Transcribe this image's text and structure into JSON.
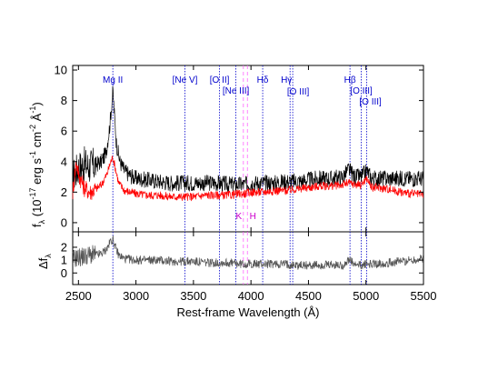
{
  "chart_data": [
    {
      "type": "line",
      "panel": "spectrum",
      "xlabel": "Rest-frame Wavelength  (Å)",
      "ylabel_main": "f",
      "ylabel_sub": "λ",
      "ylabel_units": " (10",
      "ylabel_exp": "-17",
      "ylabel_units2": " erg s",
      "ylabel_exp2": "-1",
      "ylabel_units3": " cm",
      "ylabel_exp3": "-2",
      "ylabel_units4": " Å",
      "ylabel_exp4": "-1",
      "ylabel_units5": ")",
      "xlim": [
        2450,
        5500
      ],
      "ylim": [
        -0.6,
        10.3
      ],
      "yticks": [
        0,
        2,
        4,
        6,
        8,
        10
      ],
      "series": [
        {
          "color": "#000000",
          "x": [
            2450,
            2500,
            2550,
            2600,
            2650,
            2700,
            2740,
            2770,
            2790,
            2800,
            2810,
            2830,
            2860,
            2900,
            2950,
            3000,
            3100,
            3200,
            3300,
            3400,
            3500,
            3600,
            3700,
            3800,
            3900,
            3950,
            4000,
            4100,
            4200,
            4300,
            4400,
            4500,
            4600,
            4700,
            4800,
            4850,
            4880,
            4900,
            4960,
            5007,
            5050,
            5100,
            5200,
            5300,
            5400,
            5500
          ],
          "values": [
            3.0,
            3.6,
            3.8,
            3.7,
            3.8,
            4.0,
            4.6,
            6.2,
            7.8,
            8.6,
            7.4,
            5.2,
            4.0,
            3.4,
            3.1,
            2.9,
            2.8,
            2.7,
            2.6,
            2.6,
            2.6,
            2.6,
            2.6,
            2.5,
            2.5,
            2.5,
            2.6,
            2.6,
            2.6,
            2.7,
            2.7,
            2.8,
            2.9,
            2.9,
            3.0,
            3.5,
            3.2,
            3.0,
            3.0,
            3.4,
            2.9,
            2.9,
            2.9,
            2.9,
            2.9,
            2.9
          ]
        },
        {
          "color": "#ff0000",
          "x": [
            2450,
            2480,
            2500,
            2550,
            2600,
            2650,
            2700,
            2750,
            2780,
            2800,
            2820,
            2850,
            2900,
            3000,
            3100,
            3200,
            3300,
            3400,
            3500,
            3600,
            3700,
            3800,
            3900,
            3950,
            4000,
            4100,
            4200,
            4300,
            4400,
            4500,
            4600,
            4700,
            4800,
            4850,
            4900,
            4960,
            5007,
            5050,
            5100,
            5200,
            5300,
            5400,
            5500
          ],
          "values": [
            2.0,
            4.0,
            3.2,
            2.3,
            2.0,
            2.2,
            2.5,
            3.2,
            4.0,
            4.3,
            3.6,
            2.6,
            2.1,
            1.9,
            1.8,
            1.8,
            1.7,
            1.7,
            1.7,
            1.8,
            1.8,
            1.8,
            1.9,
            1.9,
            2.0,
            2.0,
            2.1,
            2.1,
            2.2,
            2.3,
            2.4,
            2.4,
            2.5,
            2.6,
            2.5,
            2.5,
            2.9,
            2.3,
            2.3,
            2.2,
            2.0,
            1.9,
            1.8
          ]
        }
      ],
      "emission_lines": [
        {
          "label": "Mg II",
          "x": 2799
        },
        {
          "label": "[Ne V]",
          "x": 3426
        },
        {
          "label": "[O II]",
          "x": 3727
        },
        {
          "label": "[Ne III]",
          "x": 3869
        },
        {
          "label": "Hδ",
          "x": 4102
        },
        {
          "label": "Hγ",
          "x": 4340
        },
        {
          "label": "[O III]",
          "x": 4363
        },
        {
          "label": "Hβ",
          "x": 4861
        },
        {
          "label": "[O III]",
          "x": 4959
        },
        {
          "label": "[O III]",
          "x": 5007
        }
      ],
      "absorption_lines": [
        {
          "label": "K",
          "x": 3934
        },
        {
          "label": "H",
          "x": 3969
        }
      ]
    },
    {
      "type": "line",
      "panel": "residual",
      "ylabel_main": "Δf",
      "ylabel_sub": "λ",
      "xlim": [
        2450,
        5500
      ],
      "ylim": [
        -0.9,
        3.2
      ],
      "yticks": [
        0,
        1,
        2
      ],
      "xticks": [
        2500,
        3000,
        3500,
        4000,
        4500,
        5000,
        5500
      ],
      "series": [
        {
          "color": "#555555",
          "x": [
            2450,
            2500,
            2550,
            2600,
            2650,
            2700,
            2750,
            2780,
            2800,
            2820,
            2850,
            2900,
            3000,
            3100,
            3200,
            3300,
            3400,
            3500,
            3600,
            3700,
            3800,
            3900,
            4000,
            4100,
            4200,
            4300,
            4400,
            4500,
            4600,
            4700,
            4800,
            4860,
            4900,
            4960,
            5007,
            5050,
            5100,
            5200,
            5300,
            5400,
            5500
          ],
          "values": [
            1.1,
            1.2,
            1.3,
            1.4,
            1.4,
            1.5,
            1.9,
            2.5,
            2.6,
            2.0,
            1.4,
            1.1,
            1.0,
            1.0,
            1.0,
            0.9,
            0.9,
            0.9,
            0.8,
            0.8,
            0.8,
            0.7,
            0.7,
            0.7,
            0.7,
            0.7,
            0.6,
            0.6,
            0.6,
            0.6,
            0.6,
            1.0,
            0.6,
            0.6,
            0.7,
            0.7,
            0.7,
            0.8,
            0.9,
            1.0,
            1.1
          ]
        }
      ],
      "emission_lines": [
        {
          "x": 2799
        },
        {
          "x": 3426
        },
        {
          "x": 3727
        },
        {
          "x": 3869
        },
        {
          "x": 4102
        },
        {
          "x": 4340
        },
        {
          "x": 4363
        },
        {
          "x": 4861
        },
        {
          "x": 4959
        },
        {
          "x": 5007
        }
      ],
      "absorption_lines": [
        {
          "x": 3934
        },
        {
          "x": 3969
        }
      ]
    }
  ]
}
